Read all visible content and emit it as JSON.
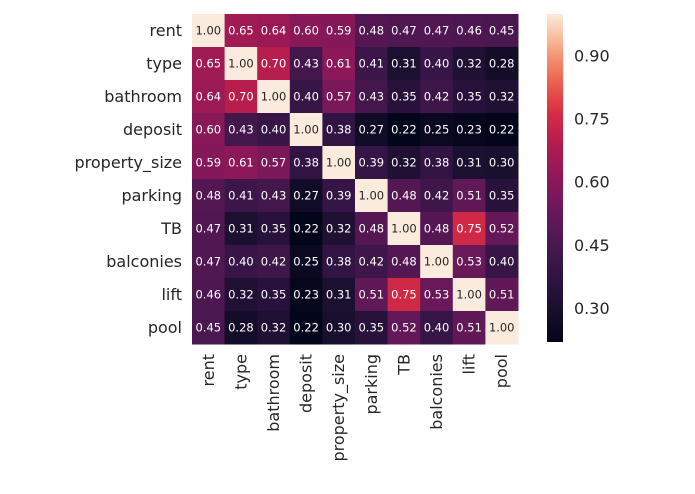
{
  "chart_data": {
    "type": "heatmap",
    "title": "",
    "xlabel": "",
    "ylabel": "",
    "labels": [
      "rent",
      "type",
      "bathroom",
      "deposit",
      "property_size",
      "parking",
      "TB",
      "balconies",
      "lift",
      "pool"
    ],
    "values": [
      [
        1.0,
        0.65,
        0.64,
        0.6,
        0.59,
        0.48,
        0.47,
        0.47,
        0.46,
        0.45
      ],
      [
        0.65,
        1.0,
        0.7,
        0.43,
        0.61,
        0.41,
        0.31,
        0.4,
        0.32,
        0.28
      ],
      [
        0.64,
        0.7,
        1.0,
        0.4,
        0.57,
        0.43,
        0.35,
        0.42,
        0.35,
        0.32
      ],
      [
        0.6,
        0.43,
        0.4,
        1.0,
        0.38,
        0.27,
        0.22,
        0.25,
        0.23,
        0.22
      ],
      [
        0.59,
        0.61,
        0.57,
        0.38,
        1.0,
        0.39,
        0.32,
        0.38,
        0.31,
        0.3
      ],
      [
        0.48,
        0.41,
        0.43,
        0.27,
        0.39,
        1.0,
        0.48,
        0.42,
        0.51,
        0.35
      ],
      [
        0.47,
        0.31,
        0.35,
        0.22,
        0.32,
        0.48,
        1.0,
        0.48,
        0.75,
        0.52
      ],
      [
        0.47,
        0.4,
        0.42,
        0.25,
        0.38,
        0.42,
        0.48,
        1.0,
        0.53,
        0.4
      ],
      [
        0.46,
        0.32,
        0.35,
        0.23,
        0.31,
        0.51,
        0.75,
        0.53,
        1.0,
        0.51
      ],
      [
        0.45,
        0.28,
        0.32,
        0.22,
        0.3,
        0.35,
        0.52,
        0.4,
        0.51,
        1.0
      ]
    ],
    "annotation_format": "0.00",
    "colormap": "rocket",
    "colorbar": {
      "range": [
        0.22,
        1.0
      ],
      "ticks": [
        0.3,
        0.45,
        0.6,
        0.75,
        0.9
      ],
      "tick_labels": [
        "0.30",
        "0.45",
        "0.60",
        "0.75",
        "0.90"
      ]
    },
    "grid": false,
    "legend": "colorbar-right"
  }
}
